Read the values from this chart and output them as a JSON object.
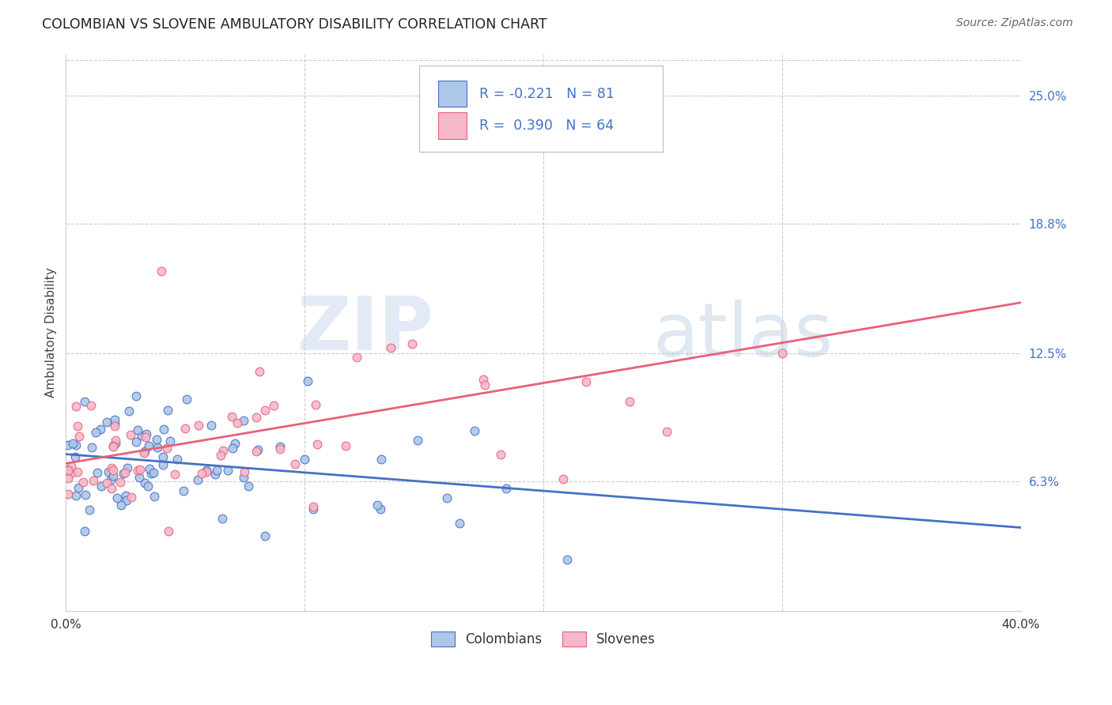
{
  "title": "COLOMBIAN VS SLOVENE AMBULATORY DISABILITY CORRELATION CHART",
  "source": "Source: ZipAtlas.com",
  "ylabel": "Ambulatory Disability",
  "xlim": [
    0.0,
    0.4
  ],
  "ylim": [
    0.0,
    0.27
  ],
  "yticks_right": [
    0.063,
    0.125,
    0.188,
    0.25
  ],
  "yticklabels_right": [
    "6.3%",
    "12.5%",
    "18.8%",
    "25.0%"
  ],
  "legend_labels": [
    "Colombians",
    "Slovenes"
  ],
  "color_colombians_fill": "#aec6e8",
  "color_colombians_edge": "#4472c4",
  "color_slovenes_fill": "#f4b8c8",
  "color_slovenes_edge": "#e8607a",
  "color_line_colombians": "#4472c4",
  "color_line_slovenes": "#e8607a",
  "color_title": "#222222",
  "color_source": "#666666",
  "color_axis_right": "#4472c4",
  "color_legend_text": "#4472c4",
  "background_color": "#ffffff",
  "watermark_zip": "ZIP",
  "watermark_atlas": "atlas",
  "r_col": -0.221,
  "n_col": 81,
  "r_slo": 0.39,
  "n_slo": 64,
  "seed_col": 7,
  "seed_slo": 13
}
